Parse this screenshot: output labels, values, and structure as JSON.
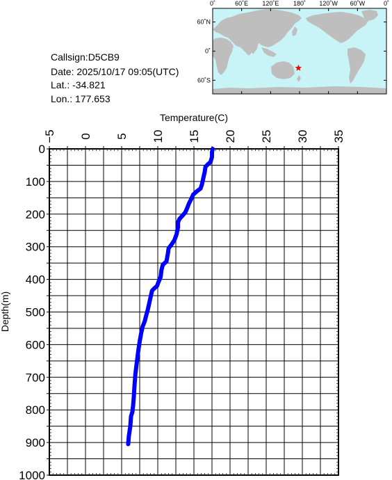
{
  "station": {
    "callsign_text": "Callsign:D5CB9",
    "date_text": "Date:  2025/10/17 09:05(UTC)",
    "lat_text": "Lat.:  -34.821",
    "lon_text": "Lon.:  177.653"
  },
  "map": {
    "top_labels": [
      "0˚",
      "60˚E",
      "120˚E",
      "180˚",
      "120˚W",
      "60˚W",
      "0˚"
    ],
    "left_labels": [
      "60˚N",
      "0˚",
      "60˚S"
    ],
    "ocean_color": "#c8f4f8",
    "land_color": "#bebebe",
    "marker_color": "#ff0000",
    "marker": "star",
    "marker_lat": -34.821,
    "marker_lon": 177.653
  },
  "chart_data": {
    "type": "line",
    "xlabel": "Temperature(C)",
    "ylabel": "Depth(m)",
    "xlim": [
      -5,
      35
    ],
    "ylim": [
      0,
      1000
    ],
    "y_inverted": true,
    "x_axis_position": "top",
    "x_ticks": [
      -5,
      0,
      5,
      10,
      15,
      20,
      25,
      30,
      35
    ],
    "y_ticks": [
      0,
      100,
      200,
      300,
      400,
      500,
      600,
      700,
      800,
      900,
      1000
    ],
    "grid": true,
    "series": [
      {
        "color": "#0000ff",
        "points": [
          [
            17.6,
            0
          ],
          [
            17.5,
            10
          ],
          [
            17.5,
            25
          ],
          [
            17.3,
            40
          ],
          [
            16.9,
            48
          ],
          [
            16.6,
            55
          ],
          [
            16.5,
            70
          ],
          [
            16.3,
            90
          ],
          [
            16.1,
            110
          ],
          [
            15.9,
            122
          ],
          [
            15.4,
            130
          ],
          [
            14.9,
            140
          ],
          [
            14.6,
            155
          ],
          [
            14.3,
            168
          ],
          [
            14.1,
            180
          ],
          [
            13.8,
            195
          ],
          [
            13.4,
            205
          ],
          [
            13.0,
            215
          ],
          [
            12.8,
            225
          ],
          [
            12.8,
            240
          ],
          [
            12.6,
            262
          ],
          [
            12.3,
            280
          ],
          [
            11.9,
            293
          ],
          [
            11.5,
            305
          ],
          [
            11.4,
            320
          ],
          [
            11.2,
            345
          ],
          [
            10.7,
            355
          ],
          [
            10.5,
            372
          ],
          [
            10.4,
            392
          ],
          [
            10.1,
            408
          ],
          [
            9.9,
            420
          ],
          [
            9.5,
            428
          ],
          [
            9.2,
            435
          ],
          [
            9.0,
            455
          ],
          [
            8.8,
            475
          ],
          [
            8.6,
            495
          ],
          [
            8.4,
            510
          ],
          [
            8.2,
            528
          ],
          [
            7.9,
            545
          ],
          [
            7.7,
            565
          ],
          [
            7.5,
            590
          ],
          [
            7.3,
            620
          ],
          [
            7.1,
            655
          ],
          [
            6.9,
            690
          ],
          [
            6.8,
            720
          ],
          [
            6.7,
            755
          ],
          [
            6.6,
            785
          ],
          [
            6.5,
            805
          ],
          [
            6.3,
            820
          ],
          [
            6.2,
            850
          ],
          [
            6.0,
            880
          ],
          [
            5.9,
            905
          ]
        ]
      }
    ]
  }
}
